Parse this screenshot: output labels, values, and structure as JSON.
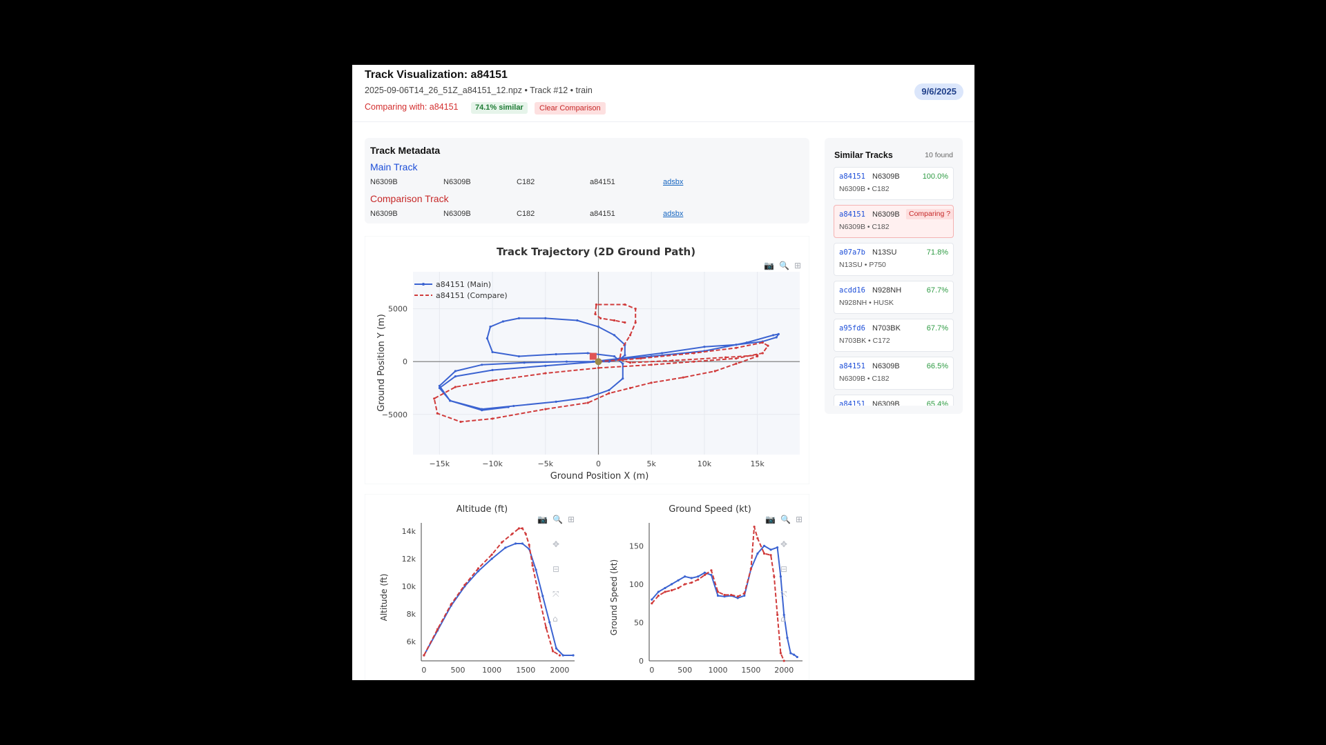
{
  "header": {
    "title": "Track Visualization: a84151",
    "subtitle": "2025-09-06T14_26_51Z_a84151_12.npz • Track #12 • train",
    "comparing": "Comparing with: a84151",
    "similarity": "74.1% similar",
    "clear_label": "Clear Comparison",
    "date": "9/6/2025"
  },
  "metadata": {
    "title": "Track Metadata",
    "main_label": "Main Track",
    "compare_label": "Comparison Track",
    "main": [
      "N6309B",
      "N6309B",
      "C182",
      "a84151"
    ],
    "compare": [
      "N6309B",
      "N6309B",
      "C182",
      "a84151"
    ],
    "link": "adsbx"
  },
  "sidebar": {
    "title": "Similar Tracks",
    "count": "10 found",
    "items": [
      {
        "hex": "a84151",
        "reg": "N6309B",
        "pct": "100.0%",
        "sub": "N6309B • C182"
      },
      {
        "hex": "a84151",
        "reg": "N6309B",
        "badge": "Comparing ?",
        "sub": "N6309B • C182"
      },
      {
        "hex": "a07a7b",
        "reg": "N13SU",
        "pct": "71.8%",
        "sub": "N13SU • P750"
      },
      {
        "hex": "acdd16",
        "reg": "N928NH",
        "pct": "67.7%",
        "sub": "N928NH • HUSK"
      },
      {
        "hex": "a95fd6",
        "reg": "N703BK",
        "pct": "67.7%",
        "sub": "N703BK • C172"
      },
      {
        "hex": "a84151",
        "reg": "N6309B",
        "pct": "66.5%",
        "sub": "N6309B • C182"
      },
      {
        "hex": "a84151",
        "reg": "N6309B",
        "pct": "65.4%",
        "sub": ""
      }
    ]
  },
  "colors": {
    "main": "#3b63d1",
    "compare": "#d03a3a"
  },
  "toolbar_icons": [
    "camera-icon",
    "zoom-icon",
    "zoom-in-icon",
    "pan-icon",
    "zoom-out-icon",
    "autoscale-icon",
    "home-icon"
  ],
  "chart_data": [
    {
      "type": "line",
      "title": "Track Trajectory (2D Ground Path)",
      "xlabel": "Ground Position X (m)",
      "ylabel": "Ground Position Y (m)",
      "xlim": [
        -17500,
        19000
      ],
      "ylim": [
        -8800,
        8500
      ],
      "xticks": [
        -15000,
        -10000,
        -5000,
        0,
        5000,
        10000,
        15000
      ],
      "xtick_labels": [
        "−15k",
        "−10k",
        "−5k",
        "0",
        "5k",
        "10k",
        "15k"
      ],
      "yticks": [
        -5000,
        0,
        5000
      ],
      "ytick_labels": [
        "−5000",
        "0",
        "5000"
      ],
      "legend": "top-left",
      "series": [
        {
          "name": "a84151 (Main)",
          "style": "solid",
          "x": [
            -500,
            2000,
            6000,
            10000,
            13000,
            15500,
            16800,
            17000,
            16500,
            14000,
            10000,
            5000,
            0,
            -5000,
            -10000,
            -13500,
            -15000,
            -14000,
            -11000,
            -8000,
            -4000,
            -1000,
            1000,
            2300,
            2300,
            1500,
            -1000,
            -4000,
            -7500,
            -10000,
            -10500,
            -10200,
            -9000,
            -7500,
            -5000,
            -2000,
            0,
            1500,
            2500,
            2500,
            2000,
            1000,
            0,
            -3000,
            -7000,
            -11000,
            -13500,
            -15000,
            -14000,
            -11000,
            -8500
          ],
          "y": [
            0,
            300,
            800,
            1400,
            1600,
            1900,
            2300,
            2600,
            2500,
            1800,
            1000,
            500,
            0,
            -400,
            -800,
            -1400,
            -2500,
            -3700,
            -4500,
            -4200,
            -3800,
            -3400,
            -2700,
            -1600,
            -200,
            500,
            800,
            700,
            500,
            900,
            2200,
            3300,
            3800,
            4100,
            4100,
            3900,
            3300,
            2500,
            1600,
            600,
            200,
            0,
            0,
            0,
            -100,
            -300,
            -900,
            -2300,
            -3700,
            -4600,
            -4300
          ]
        },
        {
          "name": "a84151 (Compare)",
          "style": "dashed",
          "x": [
            0,
            4000,
            9000,
            13000,
            15500,
            16000,
            15500,
            13000,
            9000,
            5000,
            0,
            -5000,
            -10000,
            -13500,
            -15500,
            -15200,
            -13000,
            -10000,
            -5000,
            -1000,
            1000,
            3000,
            5000,
            8000,
            11000,
            13000,
            15000,
            15000,
            12000,
            7000,
            3000,
            2000,
            2200,
            3000,
            3500,
            3500,
            2500,
            -200,
            -300,
            200,
            1500,
            2500
          ],
          "y": [
            0,
            300,
            800,
            1300,
            1800,
            1500,
            800,
            300,
            0,
            -300,
            -600,
            -1100,
            -1800,
            -2400,
            -3500,
            -4900,
            -5700,
            -5400,
            -4500,
            -3900,
            -3000,
            -2500,
            -2000,
            -1500,
            -900,
            -200,
            500,
            600,
            400,
            100,
            -100,
            200,
            1200,
            2500,
            3700,
            5000,
            5400,
            5400,
            4500,
            4100,
            3900,
            3700
          ]
        }
      ]
    },
    {
      "type": "line",
      "title": "Altitude (ft)",
      "ylabel": "Altitude (ft)",
      "xlim": [
        -40,
        2220
      ],
      "ylim": [
        4600,
        14600
      ],
      "xticks": [
        0,
        500,
        1000,
        1500,
        2000
      ],
      "xtick_labels": [
        "0",
        "500",
        "1000",
        "1500",
        "2000"
      ],
      "yticks": [
        6000,
        8000,
        10000,
        12000,
        14000
      ],
      "ytick_labels": [
        "6k",
        "8k",
        "10k",
        "12k",
        "14k"
      ],
      "series": [
        {
          "name": "a84151 (Main)",
          "style": "solid",
          "x": [
            0,
            200,
            400,
            600,
            800,
            1000,
            1200,
            1350,
            1450,
            1550,
            1650,
            1750,
            1850,
            1950,
            2050,
            2200
          ],
          "y": [
            5000,
            6800,
            8600,
            10000,
            11100,
            12000,
            12800,
            13100,
            13100,
            12700,
            11200,
            9300,
            7400,
            5500,
            5000,
            5000
          ]
        },
        {
          "name": "a84151 (Compare)",
          "style": "dashed",
          "x": [
            0,
            200,
            400,
            600,
            800,
            1000,
            1150,
            1300,
            1400,
            1450,
            1500,
            1550,
            1600,
            1700,
            1800,
            1900,
            2000
          ],
          "y": [
            5000,
            6900,
            8700,
            10100,
            11300,
            12300,
            13200,
            13800,
            14200,
            14200,
            13800,
            13000,
            11500,
            9200,
            7000,
            5300,
            5000
          ]
        }
      ]
    },
    {
      "type": "line",
      "title": "Ground Speed (kt)",
      "ylabel": "Ground Speed (kt)",
      "xlim": [
        -40,
        2280
      ],
      "ylim": [
        0,
        180
      ],
      "xticks": [
        0,
        500,
        1000,
        1500,
        2000
      ],
      "xtick_labels": [
        "0",
        "500",
        "1000",
        "1500",
        "2000"
      ],
      "yticks": [
        0,
        50,
        100,
        150
      ],
      "ytick_labels": [
        "0",
        "50",
        "100",
        "150"
      ],
      "series": [
        {
          "name": "a84151 (Main)",
          "style": "solid",
          "x": [
            0,
            100,
            200,
            300,
            400,
            500,
            600,
            700,
            800,
            900,
            1000,
            1100,
            1200,
            1300,
            1400,
            1500,
            1600,
            1700,
            1800,
            1900,
            1950,
            2000,
            2050,
            2100,
            2150,
            2200
          ],
          "y": [
            80,
            90,
            95,
            100,
            105,
            110,
            108,
            110,
            115,
            112,
            85,
            84,
            85,
            82,
            85,
            120,
            140,
            150,
            145,
            148,
            110,
            60,
            30,
            10,
            8,
            5
          ]
        },
        {
          "name": "a84151 (Compare)",
          "style": "dashed",
          "x": [
            0,
            100,
            200,
            300,
            400,
            500,
            600,
            700,
            800,
            900,
            1000,
            1100,
            1200,
            1300,
            1400,
            1500,
            1550,
            1600,
            1700,
            1800,
            1850,
            1900,
            1950,
            2000
          ],
          "y": [
            75,
            85,
            90,
            92,
            95,
            100,
            102,
            106,
            112,
            118,
            90,
            86,
            86,
            84,
            88,
            120,
            175,
            160,
            140,
            138,
            110,
            60,
            10,
            0
          ]
        }
      ]
    }
  ]
}
